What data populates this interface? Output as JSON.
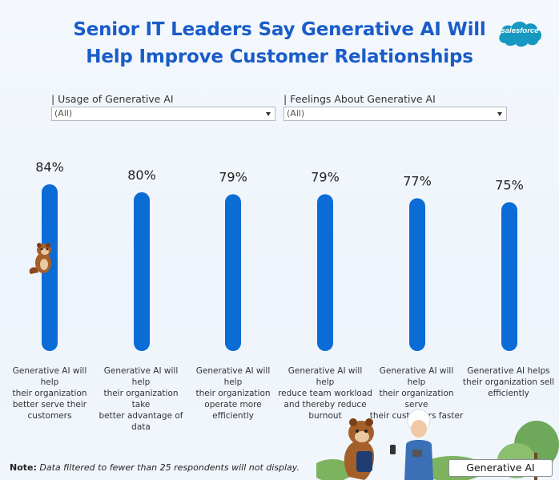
{
  "header": {
    "title_line1": "Senior IT Leaders Say Generative AI Will",
    "title_line2": "Help Improve Customer Relationships",
    "logo_text": "salesforce",
    "brand_color": "#1a5cc8",
    "logo_color": "#1798c1"
  },
  "filters": [
    {
      "label": "| Usage of Generative AI",
      "value": "(All)"
    },
    {
      "label": "| Feelings About Generative AI",
      "value": "(All)"
    }
  ],
  "chart_data": {
    "type": "bar",
    "orientation": "vertical",
    "bar_color": "#0b6cd6",
    "categories": [
      "Generative AI will help their organization better serve their customers",
      "Generative AI will help their organization take better advantage of data",
      "Generative AI will help their organization operate more efficiently",
      "Generative AI will help reduce team workload and thereby reduce burnout",
      "Generative AI will help their organization serve their customers faster",
      "Generative AI helps their organization sell efficiently"
    ],
    "category_lines": [
      [
        "Generative AI will help",
        "their organization",
        "better serve their",
        "customers"
      ],
      [
        "Generative AI will help",
        "their organization take",
        "better advantage of",
        "data"
      ],
      [
        "Generative AI will help",
        "their organization",
        "operate more efficiently"
      ],
      [
        "Generative AI will help",
        "reduce team workload",
        "and thereby reduce",
        "burnout"
      ],
      [
        "Generative AI will help",
        "their organization serve",
        "their customers faster"
      ],
      [
        "Generative AI helps",
        "their organization sell",
        "efficiently"
      ]
    ],
    "values": [
      84,
      80,
      79,
      79,
      77,
      75
    ],
    "data_labels": [
      "84%",
      "80%",
      "79%",
      "79%",
      "77%",
      "75%"
    ],
    "unit": "%",
    "ylim": [
      0,
      84
    ],
    "grid": false,
    "axes_visible": false
  },
  "footer": {
    "note_label": "Note:",
    "note_text": "Data filtered to fewer than 25 respondents will not display.",
    "tab_label": "Generative AI"
  }
}
